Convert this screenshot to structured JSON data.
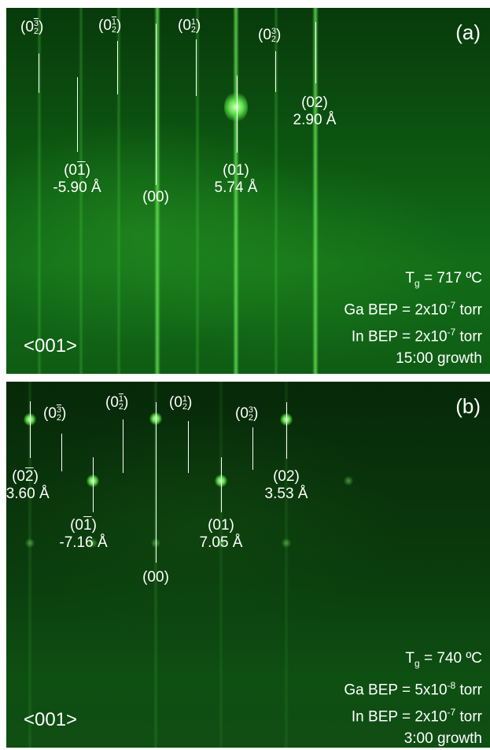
{
  "panels": [
    {
      "tag": "(a)",
      "direction": "<001>",
      "labels": {
        "half_neg3": "(0",
        "half_neg3_num": "3",
        "half_neg3_den": "2",
        "half_neg1": "(0",
        "half_neg1_num": "1",
        "half_neg1_den": "2",
        "half_pos1": "(0",
        "half_pos1_num": "1",
        "half_pos1_den": "2",
        "half_pos3": "(0",
        "half_pos3_num": "3",
        "half_pos3_den": "2",
        "close": ")",
        "o1bar": "(0",
        "o1bar_bar": "1",
        "o1bar_dist": "-5.90 Å",
        "o00": "(00)",
        "o01": "(01)",
        "o01_dist": "5.74 Å",
        "o02": "(02)",
        "o02_dist": "2.90 Å"
      },
      "info": {
        "tg_prefix": "T",
        "tg_sub": "g",
        "tg_value": " = 717 ºC",
        "ga_prefix": "Ga BEP = 2x10",
        "ga_exp": "-7",
        "ga_unit": " torr",
        "in_prefix": "In BEP = 2x10",
        "in_exp": "-7",
        "in_unit": " torr",
        "growth": "15:00 growth"
      }
    },
    {
      "tag": "(b)",
      "direction": "<001>",
      "labels": {
        "half_neg3": "(0",
        "half_neg3_num": "3",
        "half_neg3_den": "2",
        "half_neg1": "(0",
        "half_neg1_num": "1",
        "half_neg1_den": "2",
        "half_pos1": "(0",
        "half_pos1_num": "1",
        "half_pos1_den": "2",
        "half_pos3": "(0",
        "half_pos3_num": "3",
        "half_pos3_den": "2",
        "close": ")",
        "o2bar": "(0",
        "o2bar_bar": "2",
        "o2bar_dist": "-3.60 Å",
        "o1bar": "(0",
        "o1bar_bar": "1",
        "o1bar_dist": "-7.16 Å",
        "o00": "(00)",
        "o01": "(01)",
        "o01_dist": "7.05 Å",
        "o02": "(02)",
        "o02_dist": "3.53 Å"
      },
      "info": {
        "tg_prefix": "T",
        "tg_sub": "g",
        "tg_value": " = 740 ºC",
        "ga_prefix": "Ga BEP = 5x10",
        "ga_exp": "-8",
        "ga_unit": " torr",
        "in_prefix": "In BEP = 2x10",
        "in_exp": "-7",
        "in_unit": " torr",
        "growth": "3:00 growth"
      }
    }
  ]
}
